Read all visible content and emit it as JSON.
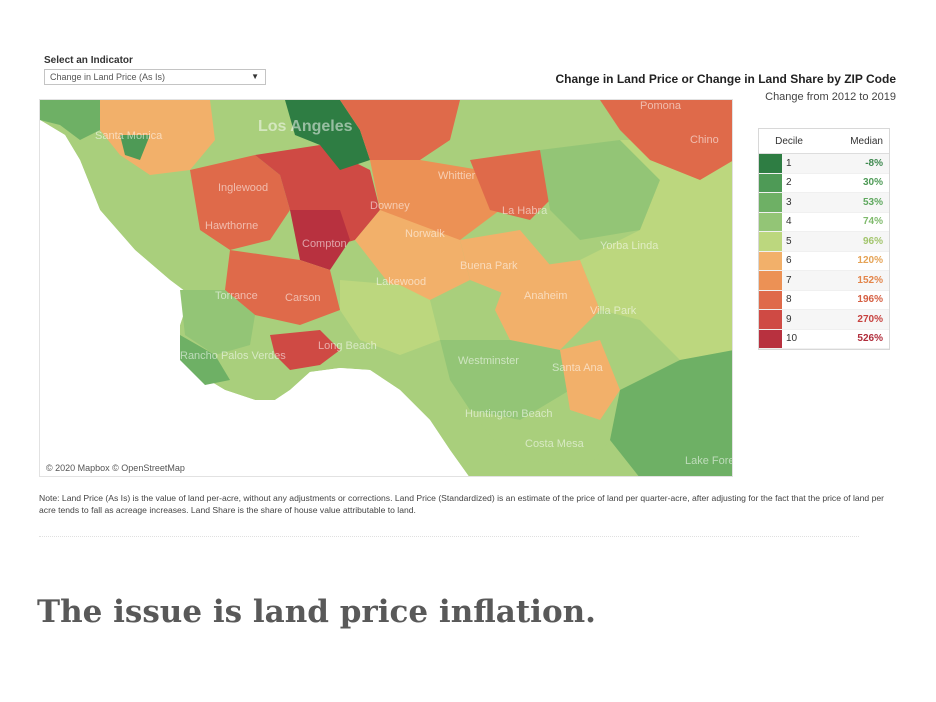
{
  "indicator": {
    "label": "Select an Indicator",
    "selected": "Change in Land Price (As Is)",
    "caret": "▼"
  },
  "map": {
    "title": "Change in Land Price or Change in Land Share by ZIP Code",
    "subtitle": "Change from 2012 to 2019",
    "attribution": "© 2020 Mapbox © OpenStreetMap",
    "places": [
      {
        "name": "Los Angeles",
        "big": true
      },
      {
        "name": "Santa Monica"
      },
      {
        "name": "Inglewood"
      },
      {
        "name": "Hawthorne"
      },
      {
        "name": "Compton"
      },
      {
        "name": "Downey"
      },
      {
        "name": "Norwalk"
      },
      {
        "name": "Whittier"
      },
      {
        "name": "La Habra"
      },
      {
        "name": "Yorba Linda"
      },
      {
        "name": "Torrance"
      },
      {
        "name": "Carson"
      },
      {
        "name": "Lakewood"
      },
      {
        "name": "Buena Park"
      },
      {
        "name": "Anaheim"
      },
      {
        "name": "Villa Park"
      },
      {
        "name": "Long Beach"
      },
      {
        "name": "Rancho Palos Verdes"
      },
      {
        "name": "Westminster"
      },
      {
        "name": "Santa Ana"
      },
      {
        "name": "Huntington Beach"
      },
      {
        "name": "Costa Mesa"
      },
      {
        "name": "Pomona"
      },
      {
        "name": "Chino"
      },
      {
        "name": "Lake Forest"
      }
    ]
  },
  "legend": {
    "col_decile": "Decile",
    "col_median": "Median",
    "rows": [
      {
        "decile": "1",
        "median": "-8%",
        "color": "#2e7d43",
        "text_color": "#3f8a50"
      },
      {
        "decile": "2",
        "median": "30%",
        "color": "#4e9a56",
        "text_color": "#4e9a56"
      },
      {
        "decile": "3",
        "median": "53%",
        "color": "#6eb065",
        "text_color": "#5fa85e"
      },
      {
        "decile": "4",
        "median": "74%",
        "color": "#93c576",
        "text_color": "#7fba6c"
      },
      {
        "decile": "5",
        "median": "96%",
        "color": "#bcd77e",
        "text_color": "#a2c56c"
      },
      {
        "decile": "6",
        "median": "120%",
        "color": "#f2b06a",
        "text_color": "#e5a356"
      },
      {
        "decile": "7",
        "median": "152%",
        "color": "#ec9155",
        "text_color": "#e3854a"
      },
      {
        "decile": "8",
        "median": "196%",
        "color": "#df6a4a",
        "text_color": "#d55f42"
      },
      {
        "decile": "9",
        "median": "270%",
        "color": "#cf4a44",
        "text_color": "#c7423f"
      },
      {
        "decile": "10",
        "median": "526%",
        "color": "#b8313f",
        "text_color": "#b02d3b"
      }
    ]
  },
  "note": "Note: Land Price (As Is) is the value of land per-acre, without any adjustments or corrections. Land Price (Standardized) is an estimate of the price of land per quarter-acre, after adjusting for the fact that the price of land per acre tends to fall as acreage increases. Land Share is the share of house value attributable to land.",
  "headline": "The issue is land price inflation."
}
